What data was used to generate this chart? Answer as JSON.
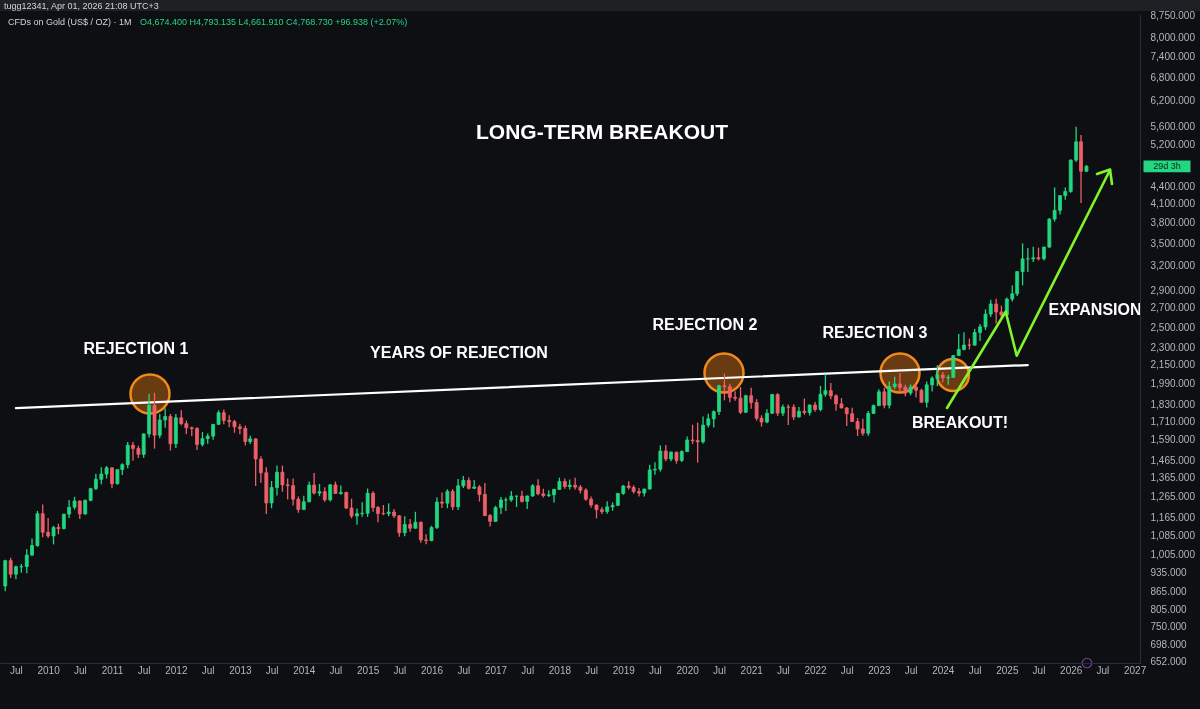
{
  "chart_data": {
    "type": "candlestick",
    "title": "LONG-TERM BREAKOUT",
    "subtitle": "CFDs on Gold (US$ / OZ) · 1M",
    "annotations": [
      "tugg12341, Apr 01, 2026 21:08 UTC+3",
      "O4,674.400 H4,793.135 L4,661.910 C4,768.730 +96.938 (+2.07%)",
      "REJECTION 1",
      "YEARS OF REJECTION",
      "REJECTION 2",
      "REJECTION 3",
      "BREAKOUT!",
      "EXPANSION",
      "29d 3h"
    ],
    "x": [
      "2009-05",
      "2009-06",
      "2009-07",
      "2009-08",
      "2009-09",
      "2009-10",
      "2009-11",
      "2009-12",
      "2010-01",
      "2010-02",
      "2010-03",
      "2010-04",
      "2010-05",
      "2010-06",
      "2010-07",
      "2010-08",
      "2010-09",
      "2010-10",
      "2010-11",
      "2010-12",
      "2011-01",
      "2011-02",
      "2011-03",
      "2011-04",
      "2011-05",
      "2011-06",
      "2011-07",
      "2011-08",
      "2011-09",
      "2011-10",
      "2011-11",
      "2011-12",
      "2012-01",
      "2012-02",
      "2012-03",
      "2012-04",
      "2012-05",
      "2012-06",
      "2012-07",
      "2012-08",
      "2012-09",
      "2012-10",
      "2012-11",
      "2012-12",
      "2013-01",
      "2013-02",
      "2013-03",
      "2013-04",
      "2013-05",
      "2013-06",
      "2013-07",
      "2013-08",
      "2013-09",
      "2013-10",
      "2013-11",
      "2013-12",
      "2014-01",
      "2014-02",
      "2014-03",
      "2014-04",
      "2014-05",
      "2014-06",
      "2014-07",
      "2014-08",
      "2014-09",
      "2014-10",
      "2014-11",
      "2014-12",
      "2015-01",
      "2015-02",
      "2015-03",
      "2015-04",
      "2015-05",
      "2015-06",
      "2015-07",
      "2015-08",
      "2015-09",
      "2015-10",
      "2015-11",
      "2015-12",
      "2016-01",
      "2016-02",
      "2016-03",
      "2016-04",
      "2016-05",
      "2016-06",
      "2016-07",
      "2016-08",
      "2016-09",
      "2016-10",
      "2016-11",
      "2016-12",
      "2017-01",
      "2017-02",
      "2017-03",
      "2017-04",
      "2017-05",
      "2017-06",
      "2017-07",
      "2017-08",
      "2017-09",
      "2017-10",
      "2017-11",
      "2017-12",
      "2018-01",
      "2018-02",
      "2018-03",
      "2018-04",
      "2018-05",
      "2018-06",
      "2018-07",
      "2018-08",
      "2018-09",
      "2018-10",
      "2018-11",
      "2018-12",
      "2019-01",
      "2019-02",
      "2019-03",
      "2019-04",
      "2019-05",
      "2019-06",
      "2019-07",
      "2019-08",
      "2019-09",
      "2019-10",
      "2019-11",
      "2019-12",
      "2020-01",
      "2020-02",
      "2020-03",
      "2020-04",
      "2020-05",
      "2020-06",
      "2020-07",
      "2020-08",
      "2020-09",
      "2020-10",
      "2020-11",
      "2020-12",
      "2021-01",
      "2021-02",
      "2021-03",
      "2021-04",
      "2021-05",
      "2021-06",
      "2021-07",
      "2021-08",
      "2021-09",
      "2021-10",
      "2021-11",
      "2021-12",
      "2022-01",
      "2022-02",
      "2022-03",
      "2022-04",
      "2022-05",
      "2022-06",
      "2022-07",
      "2022-08",
      "2022-09",
      "2022-10",
      "2022-11",
      "2022-12",
      "2023-01",
      "2023-02",
      "2023-03",
      "2023-04",
      "2023-05",
      "2023-06",
      "2023-07",
      "2023-08",
      "2023-09",
      "2023-10",
      "2023-11",
      "2023-12",
      "2024-01",
      "2024-02",
      "2024-03",
      "2024-04",
      "2024-05",
      "2024-06",
      "2024-07",
      "2024-08",
      "2024-09",
      "2024-10",
      "2024-11",
      "2024-12",
      "2025-01",
      "2025-02",
      "2025-03",
      "2025-04",
      "2025-05",
      "2025-06",
      "2025-07",
      "2025-08",
      "2025-09",
      "2025-10",
      "2025-11",
      "2025-12",
      "2026-01",
      "2026-02",
      "2026-03",
      "2026-04"
    ],
    "ohlc": [
      [
        884,
        982,
        866,
        979
      ],
      [
        979,
        990,
        913,
        927
      ],
      [
        927,
        960,
        908,
        955
      ],
      [
        955,
        966,
        932,
        956
      ],
      [
        956,
        1025,
        931,
        1001
      ],
      [
        1001,
        1070,
        998,
        1040
      ],
      [
        1040,
        1195,
        1035,
        1182
      ],
      [
        1182,
        1227,
        1075,
        1097
      ],
      [
        1097,
        1162,
        1072,
        1081
      ],
      [
        1081,
        1126,
        1045,
        1118
      ],
      [
        1118,
        1135,
        1088,
        1113
      ],
      [
        1113,
        1180,
        1110,
        1180
      ],
      [
        1180,
        1249,
        1162,
        1213
      ],
      [
        1213,
        1265,
        1202,
        1244
      ],
      [
        1244,
        1246,
        1157,
        1181
      ],
      [
        1181,
        1251,
        1177,
        1247
      ],
      [
        1247,
        1308,
        1242,
        1307
      ],
      [
        1307,
        1387,
        1300,
        1357
      ],
      [
        1357,
        1424,
        1330,
        1386
      ],
      [
        1386,
        1431,
        1361,
        1421
      ],
      [
        1421,
        1423,
        1309,
        1333
      ],
      [
        1333,
        1411,
        1329,
        1411
      ],
      [
        1411,
        1447,
        1381,
        1439
      ],
      [
        1439,
        1577,
        1419,
        1556
      ],
      [
        1556,
        1576,
        1462,
        1536
      ],
      [
        1536,
        1553,
        1478,
        1500
      ],
      [
        1500,
        1632,
        1480,
        1628
      ],
      [
        1628,
        1913,
        1605,
        1826
      ],
      [
        1826,
        1921,
        1535,
        1620
      ],
      [
        1620,
        1764,
        1600,
        1722
      ],
      [
        1722,
        1803,
        1669,
        1746
      ],
      [
        1746,
        1764,
        1523,
        1565
      ],
      [
        1565,
        1764,
        1538,
        1737
      ],
      [
        1737,
        1791,
        1686,
        1697
      ],
      [
        1697,
        1718,
        1627,
        1669
      ],
      [
        1669,
        1678,
        1613,
        1664
      ],
      [
        1664,
        1672,
        1527,
        1561
      ],
      [
        1561,
        1641,
        1548,
        1598
      ],
      [
        1598,
        1631,
        1565,
        1614
      ],
      [
        1614,
        1692,
        1591,
        1692
      ],
      [
        1692,
        1790,
        1690,
        1773
      ],
      [
        1773,
        1796,
        1693,
        1719
      ],
      [
        1719,
        1755,
        1673,
        1711
      ],
      [
        1711,
        1723,
        1636,
        1675
      ],
      [
        1675,
        1696,
        1626,
        1664
      ],
      [
        1664,
        1684,
        1555,
        1579
      ],
      [
        1579,
        1617,
        1563,
        1596
      ],
      [
        1596,
        1600,
        1321,
        1472
      ],
      [
        1472,
        1488,
        1338,
        1393
      ],
      [
        1393,
        1424,
        1180,
        1234
      ],
      [
        1234,
        1348,
        1208,
        1313
      ],
      [
        1313,
        1434,
        1272,
        1396
      ],
      [
        1396,
        1434,
        1291,
        1327
      ],
      [
        1327,
        1362,
        1251,
        1323
      ],
      [
        1323,
        1361,
        1221,
        1253
      ],
      [
        1253,
        1267,
        1187,
        1202
      ],
      [
        1202,
        1270,
        1200,
        1240
      ],
      [
        1240,
        1345,
        1238,
        1326
      ],
      [
        1326,
        1392,
        1277,
        1284
      ],
      [
        1284,
        1332,
        1268,
        1291
      ],
      [
        1291,
        1315,
        1240,
        1250
      ],
      [
        1250,
        1332,
        1241,
        1327
      ],
      [
        1327,
        1345,
        1281,
        1282
      ],
      [
        1282,
        1323,
        1275,
        1287
      ],
      [
        1287,
        1291,
        1206,
        1209
      ],
      [
        1209,
        1255,
        1160,
        1171
      ],
      [
        1171,
        1207,
        1131,
        1182
      ],
      [
        1182,
        1238,
        1167,
        1184
      ],
      [
        1184,
        1308,
        1167,
        1283
      ],
      [
        1283,
        1293,
        1191,
        1212
      ],
      [
        1212,
        1219,
        1142,
        1183
      ],
      [
        1183,
        1224,
        1175,
        1182
      ],
      [
        1182,
        1232,
        1170,
        1190
      ],
      [
        1190,
        1205,
        1162,
        1172
      ],
      [
        1172,
        1175,
        1077,
        1095
      ],
      [
        1095,
        1170,
        1080,
        1132
      ],
      [
        1132,
        1157,
        1099,
        1115
      ],
      [
        1115,
        1191,
        1113,
        1142
      ],
      [
        1142,
        1146,
        1052,
        1064
      ],
      [
        1064,
        1088,
        1046,
        1061
      ],
      [
        1061,
        1126,
        1058,
        1118
      ],
      [
        1118,
        1263,
        1111,
        1238
      ],
      [
        1238,
        1287,
        1209,
        1233
      ],
      [
        1233,
        1304,
        1208,
        1293
      ],
      [
        1293,
        1304,
        1200,
        1215
      ],
      [
        1215,
        1358,
        1200,
        1322
      ],
      [
        1322,
        1375,
        1310,
        1351
      ],
      [
        1351,
        1367,
        1302,
        1309
      ],
      [
        1309,
        1353,
        1305,
        1316
      ],
      [
        1316,
        1326,
        1241,
        1277
      ],
      [
        1277,
        1337,
        1171,
        1173
      ],
      [
        1173,
        1180,
        1123,
        1146
      ],
      [
        1146,
        1220,
        1144,
        1211
      ],
      [
        1211,
        1264,
        1180,
        1249
      ],
      [
        1249,
        1262,
        1195,
        1249
      ],
      [
        1249,
        1295,
        1240,
        1268
      ],
      [
        1268,
        1271,
        1214,
        1268
      ],
      [
        1268,
        1296,
        1236,
        1242
      ],
      [
        1242,
        1272,
        1204,
        1269
      ],
      [
        1269,
        1331,
        1266,
        1322
      ],
      [
        1322,
        1357,
        1273,
        1280
      ],
      [
        1280,
        1306,
        1261,
        1271
      ],
      [
        1271,
        1299,
        1264,
        1275
      ],
      [
        1275,
        1307,
        1236,
        1303
      ],
      [
        1303,
        1366,
        1300,
        1345
      ],
      [
        1345,
        1361,
        1307,
        1318
      ],
      [
        1318,
        1356,
        1303,
        1325
      ],
      [
        1325,
        1366,
        1302,
        1315
      ],
      [
        1315,
        1326,
        1282,
        1299
      ],
      [
        1299,
        1309,
        1245,
        1253
      ],
      [
        1253,
        1266,
        1211,
        1224
      ],
      [
        1224,
        1226,
        1160,
        1201
      ],
      [
        1201,
        1214,
        1180,
        1192
      ],
      [
        1192,
        1243,
        1182,
        1215
      ],
      [
        1215,
        1237,
        1196,
        1222
      ],
      [
        1222,
        1285,
        1220,
        1282
      ],
      [
        1282,
        1326,
        1276,
        1321
      ],
      [
        1321,
        1346,
        1303,
        1313
      ],
      [
        1313,
        1325,
        1281,
        1292
      ],
      [
        1292,
        1310,
        1266,
        1284
      ],
      [
        1284,
        1306,
        1267,
        1305
      ],
      [
        1305,
        1439,
        1302,
        1409
      ],
      [
        1409,
        1453,
        1382,
        1413
      ],
      [
        1413,
        1555,
        1400,
        1520
      ],
      [
        1520,
        1557,
        1459,
        1472
      ],
      [
        1472,
        1517,
        1459,
        1513
      ],
      [
        1513,
        1516,
        1445,
        1464
      ],
      [
        1464,
        1525,
        1454,
        1517
      ],
      [
        1517,
        1611,
        1514,
        1589
      ],
      [
        1589,
        1689,
        1563,
        1585
      ],
      [
        1585,
        1704,
        1451,
        1577
      ],
      [
        1577,
        1747,
        1567,
        1687
      ],
      [
        1687,
        1765,
        1670,
        1730
      ],
      [
        1730,
        1789,
        1671,
        1781
      ],
      [
        1781,
        1984,
        1757,
        1975
      ],
      [
        1975,
        2075,
        1863,
        1968
      ],
      [
        1968,
        1992,
        1849,
        1886
      ],
      [
        1886,
        1933,
        1860,
        1879
      ],
      [
        1879,
        1966,
        1764,
        1776
      ],
      [
        1776,
        1906,
        1773,
        1898
      ],
      [
        1898,
        1959,
        1802,
        1847
      ],
      [
        1847,
        1872,
        1717,
        1734
      ],
      [
        1734,
        1755,
        1677,
        1708
      ],
      [
        1708,
        1798,
        1700,
        1769
      ],
      [
        1769,
        1913,
        1765,
        1907
      ],
      [
        1907,
        1917,
        1750,
        1770
      ],
      [
        1770,
        1833,
        1750,
        1814
      ],
      [
        1814,
        1832,
        1688,
        1813
      ],
      [
        1813,
        1834,
        1721,
        1743
      ],
      [
        1743,
        1814,
        1740,
        1783
      ],
      [
        1783,
        1877,
        1758,
        1774
      ],
      [
        1774,
        1831,
        1753,
        1829
      ],
      [
        1829,
        1853,
        1780,
        1796
      ],
      [
        1796,
        1974,
        1783,
        1909
      ],
      [
        1909,
        2070,
        1890,
        1937
      ],
      [
        1937,
        1998,
        1872,
        1897
      ],
      [
        1897,
        1910,
        1787,
        1837
      ],
      [
        1837,
        1880,
        1805,
        1807
      ],
      [
        1807,
        1814,
        1681,
        1766
      ],
      [
        1766,
        1808,
        1709,
        1711
      ],
      [
        1711,
        1735,
        1615,
        1661
      ],
      [
        1661,
        1730,
        1617,
        1633
      ],
      [
        1633,
        1786,
        1616,
        1768
      ],
      [
        1768,
        1833,
        1765,
        1824
      ],
      [
        1824,
        1949,
        1823,
        1928
      ],
      [
        1928,
        1959,
        1805,
        1827
      ],
      [
        1827,
        2009,
        1804,
        1969
      ],
      [
        1969,
        2049,
        1950,
        1990
      ],
      [
        1990,
        2079,
        1932,
        1963
      ],
      [
        1963,
        1983,
        1893,
        1919
      ],
      [
        1919,
        1987,
        1902,
        1965
      ],
      [
        1965,
        1987,
        1884,
        1940
      ],
      [
        1940,
        1953,
        1846,
        1849
      ],
      [
        1849,
        2009,
        1811,
        1983
      ],
      [
        1983,
        2052,
        1931,
        2036
      ],
      [
        2036,
        2146,
        1973,
        2063
      ],
      [
        2063,
        2088,
        2002,
        2039
      ],
      [
        2039,
        2065,
        1984,
        2044
      ],
      [
        2044,
        2236,
        2039,
        2230
      ],
      [
        2230,
        2432,
        2229,
        2286
      ],
      [
        2286,
        2450,
        2277,
        2327
      ],
      [
        2327,
        2388,
        2286,
        2326
      ],
      [
        2326,
        2483,
        2320,
        2447
      ],
      [
        2447,
        2531,
        2364,
        2503
      ],
      [
        2503,
        2685,
        2472,
        2634
      ],
      [
        2634,
        2790,
        2604,
        2744
      ],
      [
        2744,
        2801,
        2536,
        2657
      ],
      [
        2657,
        2726,
        2583,
        2625
      ],
      [
        2625,
        2817,
        2614,
        2798
      ],
      [
        2798,
        2956,
        2772,
        2858
      ],
      [
        2858,
        3128,
        2833,
        3124
      ],
      [
        3124,
        3500,
        2957,
        3288
      ],
      [
        3288,
        3435,
        3121,
        3289
      ],
      [
        3289,
        3452,
        3247,
        3303
      ],
      [
        3303,
        3439,
        3268,
        3290
      ],
      [
        3290,
        3454,
        3268,
        3448
      ],
      [
        3448,
        3871,
        3436,
        3858
      ],
      [
        3858,
        4381,
        3820,
        3996
      ],
      [
        3996,
        4245,
        3930,
        4239
      ],
      [
        4239,
        4380,
        4170,
        4310
      ],
      [
        4310,
        4900,
        4290,
        4889
      ],
      [
        4889,
        5588,
        4850,
        5261
      ],
      [
        5261,
        5409,
        4114,
        4674.4
      ],
      [
        4674.4,
        4793.135,
        4661.91,
        4768.73
      ]
    ],
    "colors": [
      "#22d682",
      "#ef5f68",
      "#22d682",
      "#22d682",
      "#22d682",
      "#22d682",
      "#22d682",
      "#ef5f68",
      "#ef5f68",
      "#22d682",
      "#ef5f68",
      "#22d682",
      "#22d682",
      "#22d682",
      "#ef5f68",
      "#22d682",
      "#22d682",
      "#22d682",
      "#22d682",
      "#22d682",
      "#ef5f68",
      "#22d682",
      "#22d682",
      "#22d682",
      "#ef5f68",
      "#ef5f68",
      "#22d682",
      "#22d682",
      "#ef5f68",
      "#22d682",
      "#22d682",
      "#ef5f68",
      "#22d682",
      "#ef5f68",
      "#ef5f68",
      "#ef5f68",
      "#ef5f68",
      "#22d682",
      "#22d682",
      "#22d682",
      "#22d682",
      "#ef5f68",
      "#ef5f68",
      "#ef5f68",
      "#ef5f68",
      "#ef5f68",
      "#22d682",
      "#ef5f68",
      "#ef5f68",
      "#ef5f68",
      "#22d682",
      "#22d682",
      "#ef5f68",
      "#ef5f68",
      "#ef5f68",
      "#ef5f68",
      "#22d682",
      "#22d682",
      "#ef5f68",
      "#22d682",
      "#ef5f68",
      "#22d682",
      "#ef5f68",
      "#22d682",
      "#ef5f68",
      "#ef5f68",
      "#22d682",
      "#22d682",
      "#22d682",
      "#ef5f68",
      "#ef5f68",
      "#ef5f68",
      "#22d682",
      "#ef5f68",
      "#ef5f68",
      "#22d682",
      "#ef5f68",
      "#22d682",
      "#ef5f68",
      "#ef5f68",
      "#22d682",
      "#22d682",
      "#ef5f68",
      "#22d682",
      "#ef5f68",
      "#22d682",
      "#22d682",
      "#ef5f68",
      "#22d682",
      "#ef5f68",
      "#ef5f68",
      "#ef5f68",
      "#22d682",
      "#22d682",
      "#22d682",
      "#22d682",
      "#22d682",
      "#ef5f68",
      "#22d682",
      "#22d682",
      "#ef5f68",
      "#ef5f68",
      "#22d682",
      "#22d682",
      "#22d682",
      "#ef5f68",
      "#22d682",
      "#ef5f68",
      "#ef5f68",
      "#ef5f68",
      "#ef5f68",
      "#ef5f68",
      "#ef5f68",
      "#22d682",
      "#22d682",
      "#22d682",
      "#22d682",
      "#ef5f68",
      "#ef5f68",
      "#ef5f68",
      "#22d682",
      "#22d682",
      "#22d682",
      "#22d682",
      "#ef5f68",
      "#22d682",
      "#ef5f68",
      "#22d682",
      "#22d682",
      "#ef5f68",
      "#ef5f68",
      "#22d682",
      "#22d682",
      "#22d682",
      "#22d682",
      "#ef5f68",
      "#ef5f68",
      "#ef5f68",
      "#ef5f68",
      "#22d682",
      "#ef5f68",
      "#ef5f68",
      "#ef5f68",
      "#22d682",
      "#22d682",
      "#ef5f68",
      "#22d682",
      "#ef5f68",
      "#ef5f68",
      "#22d682",
      "#ef5f68",
      "#22d682",
      "#ef5f68",
      "#22d682",
      "#22d682",
      "#ef5f68",
      "#ef5f68",
      "#ef5f68",
      "#ef5f68",
      "#ef5f68",
      "#ef5f68",
      "#ef5f68",
      "#22d682",
      "#22d682",
      "#22d682",
      "#ef5f68",
      "#22d682",
      "#22d682",
      "#ef5f68",
      "#ef5f68",
      "#22d682",
      "#ef5f68",
      "#ef5f68",
      "#22d682",
      "#22d682",
      "#22d682",
      "#ef5f68",
      "#22d682",
      "#22d682",
      "#22d682",
      "#22d682",
      "#ef5f68",
      "#22d682",
      "#22d682",
      "#22d682",
      "#22d682",
      "#ef5f68",
      "#ef5f68",
      "#22d682",
      "#22d682",
      "#22d682",
      "#22d682",
      "#22d682",
      "#22d682",
      "#ef5f68",
      "#22d682",
      "#22d682",
      "#22d682",
      "#22d682",
      "#22d682",
      "#22d682",
      "#22d682",
      "#ef5f68",
      "#22d682"
    ],
    "series": [
      {
        "type": "line",
        "x": [
          "2009-07",
          "2025-05"
        ],
        "values": [
          1806,
          2147
        ],
        "color": "#ffffff"
      }
    ],
    "log": true,
    "grid": false,
    "xlim": [
      "2009-04",
      "2027-02"
    ],
    "xticks": [
      {
        "value": "2009-07",
        "label": "Jul"
      },
      "2010",
      {
        "value": "2010-07",
        "label": "Jul"
      },
      "2011",
      {
        "value": "2011-07",
        "label": "Jul"
      },
      "2012",
      {
        "value": "2012-07",
        "label": "Jul"
      },
      "2013",
      {
        "value": "2013-07",
        "label": "Jul"
      },
      "2014",
      {
        "value": "2014-07",
        "label": "Jul"
      },
      "2015",
      {
        "value": "2015-07",
        "label": "Jul"
      },
      "2016",
      {
        "value": "2016-07",
        "label": "Jul"
      },
      "2017",
      {
        "value": "2017-07",
        "label": "Jul"
      },
      "2018",
      {
        "value": "2018-07",
        "label": "Jul"
      },
      "2019",
      {
        "value": "2019-07",
        "label": "Jul"
      },
      "2020",
      {
        "value": "2020-07",
        "label": "Jul"
      },
      "2021",
      {
        "value": "2021-07",
        "label": "Jul"
      },
      "2022",
      {
        "value": "2022-07",
        "label": "Jul"
      },
      "2023",
      {
        "value": "2023-07",
        "label": "Jul"
      },
      "2024",
      {
        "value": "2024-07",
        "label": "Jul"
      },
      "2025",
      {
        "value": "2025-07",
        "label": "Jul"
      },
      "2026",
      {
        "value": "2026-07",
        "label": "Jul"
      },
      "2027"
    ],
    "ylim": [
      649,
      8790
    ],
    "yticks": [
      {
        "value": 652,
        "label": "652.000"
      },
      {
        "value": 698,
        "label": "698.000"
      },
      {
        "value": 750,
        "label": "750.000"
      },
      {
        "value": 805,
        "label": "805.000"
      },
      {
        "value": 865,
        "label": "865.000"
      },
      {
        "value": 935,
        "label": "935.000"
      },
      {
        "value": 1005,
        "label": "1,005.000"
      },
      {
        "value": 1085,
        "label": "1,085.000"
      },
      {
        "value": 1165,
        "label": "1,165.000"
      },
      {
        "value": 1265,
        "label": "1,265.000"
      },
      {
        "value": 1365,
        "label": "1,365.000"
      },
      {
        "value": 1465,
        "label": "1,465.000"
      },
      {
        "value": 1590,
        "label": "1,590.000"
      },
      {
        "value": 1710,
        "label": "1,710.000"
      },
      {
        "value": 1830,
        "label": "1,830.000"
      },
      {
        "value": 1990,
        "label": "1,990.000"
      },
      {
        "value": 2150,
        "label": "2,150.000"
      },
      {
        "value": 2300,
        "label": "2,300.000"
      },
      {
        "value": 2500,
        "label": "2,500.000"
      },
      {
        "value": 2700,
        "label": "2,700.000"
      },
      {
        "value": 2900,
        "label": "2,900.000"
      },
      {
        "value": 3200,
        "label": "3,200.000"
      },
      {
        "value": 3500,
        "label": "3,500.000"
      },
      {
        "value": 3800,
        "label": "3,800.000"
      },
      {
        "value": 4100,
        "label": "4,100.000"
      },
      {
        "value": 4400,
        "label": "4,400.000"
      },
      {
        "value": 5200,
        "label": "5,200.000"
      },
      {
        "value": 5600,
        "label": "5,600.000"
      },
      {
        "value": 6200,
        "label": "6,200.000"
      },
      {
        "value": 6800,
        "label": "6,800.000"
      },
      {
        "value": 7400,
        "label": "7,400.000"
      },
      {
        "value": 8000,
        "label": "8,000.000"
      },
      {
        "value": 8750,
        "label": "8,750.000"
      }
    ]
  }
}
